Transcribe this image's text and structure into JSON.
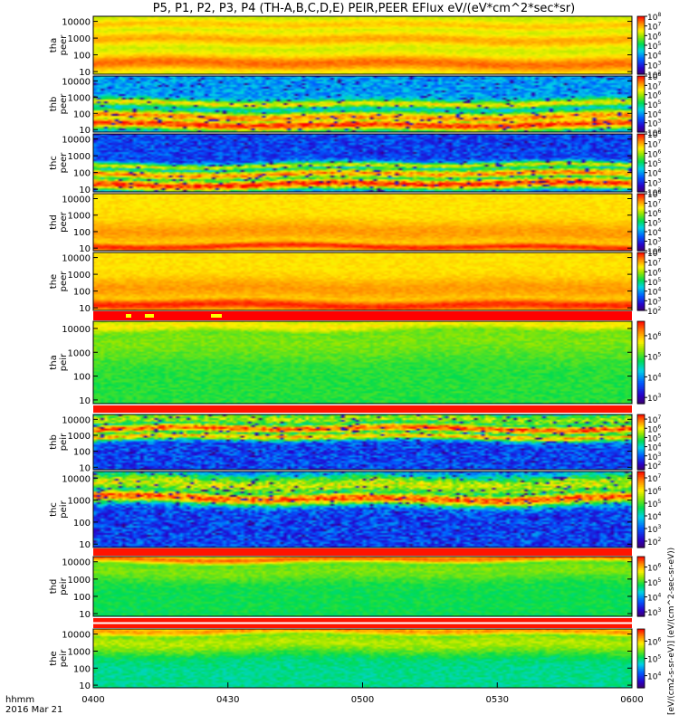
{
  "chart_data": {
    "type": "heatmap",
    "title": "P5, P1, P2, P3, P4 (TH-A,B,C,D,E) PEIR,PEER EFlux eV/(eV*cm^2*sec*sr)",
    "time_axis": {
      "label_line1": "hhmm",
      "label_line2": "2016 Mar 21",
      "ticks": [
        "0400",
        "0430",
        "0500",
        "0530",
        "0600"
      ],
      "range": [
        "04:00",
        "06:00"
      ]
    },
    "energy_axis": {
      "scale": "log",
      "unit": "eV",
      "ylim": [
        7,
        20000
      ],
      "ticks": [
        10,
        100,
        1000,
        10000
      ],
      "tick_labels": [
        "10",
        "100",
        "1000",
        "10000"
      ]
    },
    "colorbar_label": "[eV/(cm2-s-sr-eV)] (eV/(cm^2-sec-sr-eV))",
    "panels": [
      {
        "probe": "tha",
        "species": "peer",
        "label_top": "tha",
        "label_bottom": "peer",
        "cb_exp": [
          2,
          3,
          4,
          5,
          6,
          7,
          8
        ],
        "cb_min": 2,
        "cb_max": 8,
        "bands": [
          {
            "e": 30,
            "w": 0.45,
            "v": 7.4
          },
          {
            "e": 800,
            "w": 0.35,
            "v": 7.0
          },
          {
            "e": 6000,
            "w": 0.25,
            "v": 6.8
          }
        ],
        "base": 6.2,
        "noise": 0.15
      },
      {
        "probe": "thb",
        "species": "peer",
        "label_top": "thb",
        "label_bottom": "peer",
        "cb_exp": [
          2,
          3,
          4,
          5,
          6,
          7,
          8
        ],
        "cb_min": 2,
        "cb_max": 8,
        "bands": [
          {
            "e": 20,
            "w": 0.35,
            "v": 7.7
          },
          {
            "e": 60,
            "w": 0.35,
            "v": 7.2
          },
          {
            "e": 400,
            "w": 0.25,
            "v": 6.5
          }
        ],
        "base": 4.0,
        "noise": 0.5
      },
      {
        "probe": "thc",
        "species": "peer",
        "label_top": "thc",
        "label_bottom": "peer",
        "cb_exp": [
          2,
          3,
          4,
          5,
          6,
          7,
          8
        ],
        "cb_min": 2,
        "cb_max": 8,
        "bands": [
          {
            "e": 20,
            "w": 0.35,
            "v": 7.8
          },
          {
            "e": 80,
            "w": 0.3,
            "v": 7.2
          },
          {
            "e": 250,
            "w": 0.2,
            "v": 6.3
          }
        ],
        "base": 3.3,
        "noise": 0.6
      },
      {
        "probe": "thd",
        "species": "peer",
        "label_top": "thd",
        "label_bottom": "peer",
        "cb_exp": [
          2,
          3,
          4,
          5,
          6,
          7,
          8
        ],
        "cb_min": 2,
        "cb_max": 8,
        "bands": [
          {
            "e": 12,
            "w": 0.2,
            "v": 7.8
          },
          {
            "e": 100,
            "w": 0.6,
            "v": 7.1
          }
        ],
        "base": 6.6,
        "noise": 0.15
      },
      {
        "probe": "the",
        "species": "peer",
        "label_top": "the",
        "label_bottom": "peer",
        "cb_exp": [
          2,
          3,
          4,
          5,
          6,
          7,
          8
        ],
        "cb_min": 2,
        "cb_max": 8,
        "bands": [
          {
            "e": 15,
            "w": 0.3,
            "v": 7.8
          },
          {
            "e": 150,
            "w": 0.6,
            "v": 7.1
          }
        ],
        "base": 6.6,
        "noise": 0.15
      },
      {
        "probe": "tha",
        "species": "peir",
        "label_top": "tha",
        "label_bottom": "peir",
        "cb_exp": [
          3,
          4,
          5,
          6
        ],
        "cb_min": 2.7,
        "cb_max": 6.7,
        "bands": [
          {
            "e": 15000,
            "w": 0.3,
            "v": 5.7
          },
          {
            "e": 3000,
            "w": 0.8,
            "v": 5.2
          }
        ],
        "base": 4.9,
        "noise": 0.15
      },
      {
        "probe": "thb",
        "species": "peir",
        "label_top": "thb",
        "label_bottom": "peir",
        "cb_exp": [
          2,
          3,
          4,
          5,
          6,
          7
        ],
        "cb_min": 1.5,
        "cb_max": 7.5,
        "bands": [
          {
            "e": 2500,
            "w": 0.3,
            "v": 7.1
          },
          {
            "e": 800,
            "w": 0.25,
            "v": 6.3
          },
          {
            "e": 10000,
            "w": 0.5,
            "v": 5.4
          }
        ],
        "base": 2.8,
        "noise": 0.7
      },
      {
        "probe": "thc",
        "species": "peir",
        "label_top": "thc",
        "label_bottom": "peir",
        "cb_exp": [
          2,
          3,
          4,
          5,
          6,
          7
        ],
        "cb_min": 1.5,
        "cb_max": 7.5,
        "bands": [
          {
            "e": 1200,
            "w": 0.3,
            "v": 7.0
          },
          {
            "e": 5000,
            "w": 0.5,
            "v": 5.7
          }
        ],
        "base": 2.8,
        "noise": 0.7
      },
      {
        "probe": "thd",
        "species": "peir",
        "label_top": "thd",
        "label_bottom": "peir",
        "cb_exp": [
          3,
          4,
          5,
          6
        ],
        "cb_min": 2.7,
        "cb_max": 6.7,
        "bands": [
          {
            "e": 15000,
            "w": 0.25,
            "v": 6.3
          },
          {
            "e": 3000,
            "w": 0.6,
            "v": 5.2
          }
        ],
        "base": 4.8,
        "noise": 0.15
      },
      {
        "probe": "the",
        "species": "peir",
        "label_top": "the",
        "label_bottom": "peir",
        "cb_exp": [
          4,
          5,
          6
        ],
        "cb_min": 3.3,
        "cb_max": 6.7,
        "bands": [
          {
            "e": 15000,
            "w": 0.3,
            "v": 6.2
          },
          {
            "e": 3000,
            "w": 0.7,
            "v": 5.6
          }
        ],
        "base": 4.9,
        "noise": 0.15
      }
    ]
  }
}
